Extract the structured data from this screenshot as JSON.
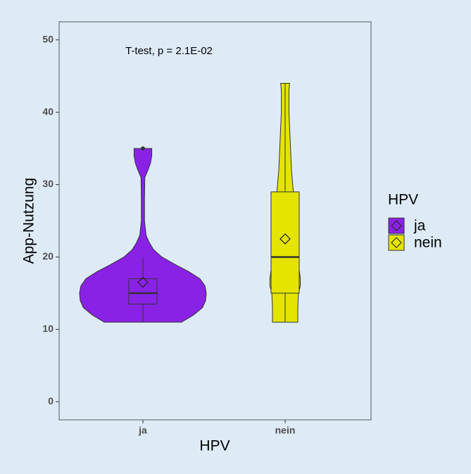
{
  "chart_data": {
    "type": "violin",
    "annotation": "T-test, p = 2.1E-02",
    "x_label": "HPV",
    "y_label": "App-Nutzung",
    "legend_title": "HPV",
    "categories": [
      "ja",
      "nein"
    ],
    "ylim": [
      -2.5,
      52.5
    ],
    "yticks": [
      0,
      10,
      20,
      30,
      40,
      50
    ],
    "groups": [
      {
        "color": "#8a22e6",
        "min": 11,
        "q1": 13.5,
        "median": 15,
        "q3": 17,
        "max": 20,
        "mean": 16.5,
        "outliers": [
          35
        ],
        "violin": {
          "y": [
            11,
            12,
            13,
            14,
            15,
            16,
            17,
            18,
            19,
            20,
            21,
            22,
            23,
            25,
            28,
            31,
            32,
            33,
            34,
            35
          ],
          "width": [
            0.61,
            0.8,
            0.94,
            0.99,
            1,
            0.98,
            0.9,
            0.72,
            0.5,
            0.3,
            0.17,
            0.1,
            0.05,
            0.025,
            0.025,
            0.03,
            0.08,
            0.12,
            0.14,
            0.14
          ]
        }
      },
      {
        "color": "#e4e400",
        "min": 11,
        "q1": 15,
        "median": 20,
        "q3": 29,
        "max": 44,
        "mean": 22.5,
        "outliers": [],
        "violin": {
          "y": [
            11,
            13,
            15,
            16,
            17,
            19,
            21,
            22,
            23,
            25,
            28,
            29,
            32,
            36,
            40,
            43,
            44
          ],
          "width": [
            0.2,
            0.2,
            0.21,
            0.24,
            0.24,
            0.21,
            0.21,
            0.22,
            0.19,
            0.18,
            0.17,
            0.13,
            0.1,
            0.08,
            0.06,
            0.06,
            0.07
          ]
        }
      }
    ]
  }
}
